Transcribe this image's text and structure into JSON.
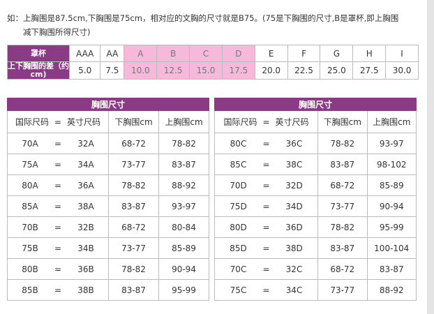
{
  "note": {
    "line1": "如：上胸围是87.5cm,下胸围是75cm，相对应的文胸的尺寸就是B75。(75是下胸围的尺寸,B是罩杯,即上胸围",
    "line2": "减下胸围所得尺寸)"
  },
  "cup_table": {
    "row1_label": "罩杯",
    "row2_label": "上下胸围的差（约cm)",
    "cups": [
      "AAA",
      "AA",
      "A",
      "B",
      "C",
      "D",
      "E",
      "F",
      "G",
      "H",
      "I"
    ],
    "diffs": [
      "5.0",
      "7.5",
      "10.0",
      "12.5",
      "15.0",
      "17.5",
      "20.0",
      "22.5",
      "25.0",
      "27.5",
      "30.0"
    ],
    "highlighted": [
      "A",
      "B",
      "C",
      "D"
    ],
    "highlight_color": "#f6b9dc",
    "header_color": "#8b3a86"
  },
  "size_tables": [
    {
      "title": "胸围尺寸",
      "headers": [
        "国际尺码",
        "=",
        "英寸尺码",
        "下胸围cm",
        "上胸围cm"
      ],
      "rows": [
        [
          "70A",
          "32A",
          "68-72",
          "78-82"
        ],
        [
          "75A",
          "34A",
          "73-77",
          "83-87"
        ],
        [
          "80A",
          "36A",
          "78-82",
          "88-92"
        ],
        [
          "85A",
          "38A",
          "83-87",
          "93-97"
        ],
        [
          "70B",
          "32B",
          "68-72",
          "80-84"
        ],
        [
          "75B",
          "34B",
          "73-77",
          "85-89"
        ],
        [
          "80B",
          "36B",
          "78-82",
          "90-94"
        ],
        [
          "85B",
          "38B",
          "83-87",
          "95-99"
        ]
      ]
    },
    {
      "title": "胸围尺寸",
      "headers": [
        "国际尺码",
        "=",
        "英寸尺码",
        "下胸围cm",
        "上胸围cm"
      ],
      "rows": [
        [
          "80C",
          "36C",
          "78-82",
          "93-97"
        ],
        [
          "85C",
          "38C",
          "83-87",
          "98-102"
        ],
        [
          "70D",
          "32D",
          "68-72",
          "85-89"
        ],
        [
          "75D",
          "34D",
          "73-77",
          "90-94"
        ],
        [
          "80D",
          "36D",
          "78-82",
          "95-99"
        ],
        [
          "85D",
          "38D",
          "83-87",
          "100-104"
        ],
        [
          "70C",
          "32C",
          "68-72",
          "83-87"
        ],
        [
          "75C",
          "34C",
          "73-77",
          "88-92"
        ]
      ]
    }
  ]
}
